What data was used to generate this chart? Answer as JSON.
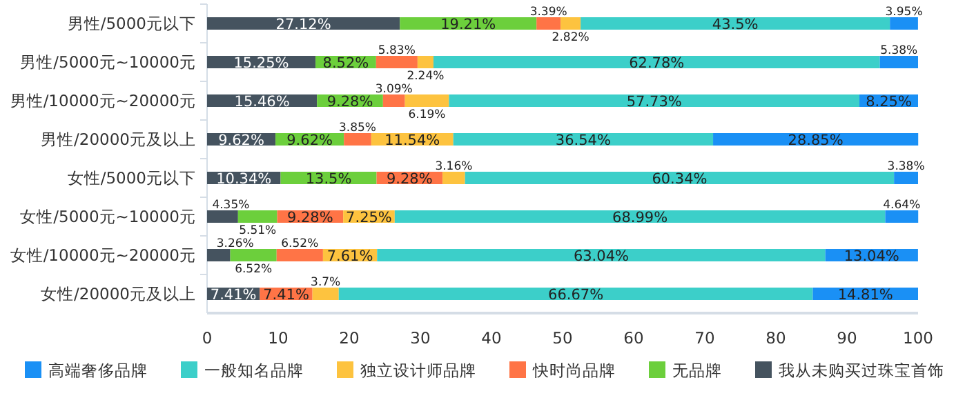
{
  "chart_data": {
    "type": "bar",
    "orientation": "horizontal",
    "stacked": true,
    "legend": "bottom",
    "xlim": [
      0,
      100
    ],
    "xticks": [
      0,
      10,
      20,
      30,
      40,
      50,
      60,
      70,
      80,
      90,
      100
    ],
    "categories": [
      "男性/5000元以下",
      "男性/5000元~10000元",
      "男性/10000元~20000元",
      "男性/20000元及以上",
      "女性/5000元以下",
      "女性/5000元~10000元",
      "女性/10000元~20000元",
      "女性/20000元及以上"
    ],
    "series": [
      {
        "name": "我从未购买过珠宝首饰",
        "color": "#45535f",
        "values": [
          27.12,
          15.25,
          15.46,
          9.62,
          10.34,
          4.35,
          3.26,
          7.41
        ],
        "value_labels": [
          "27.12%",
          "15.25%",
          "15.46%",
          "9.62%",
          "10.34%",
          "4.35%",
          "3.26%",
          "7.41%"
        ]
      },
      {
        "name": "无品牌",
        "color": "#6ccf3c",
        "values": [
          19.21,
          8.52,
          9.28,
          9.62,
          13.5,
          5.51,
          6.52,
          null
        ],
        "value_labels": [
          "19.21%",
          "8.52%",
          "9.28%",
          "9.62%",
          "13.5%",
          "5.51%",
          "6.52%",
          null
        ]
      },
      {
        "name": "快时尚品牌",
        "color": "#ff7446",
        "values": [
          3.39,
          5.83,
          3.09,
          3.85,
          9.28,
          9.28,
          6.52,
          7.41
        ],
        "value_labels": [
          "3.39%",
          "5.83%",
          "3.09%",
          "3.85%",
          "9.28%",
          "9.28%",
          "6.52%",
          "7.41%"
        ]
      },
      {
        "name": "独立设计师品牌",
        "color": "#fdc33f",
        "values": [
          2.82,
          2.24,
          6.19,
          11.54,
          3.16,
          7.25,
          7.61,
          3.7
        ],
        "value_labels": [
          "2.82%",
          "2.24%",
          "6.19%",
          "11.54%",
          "3.16%",
          "7.25%",
          "7.61%",
          "3.7%"
        ]
      },
      {
        "name": "一般知名品牌",
        "color": "#3ccfc9",
        "values": [
          43.5,
          62.78,
          57.73,
          36.54,
          60.34,
          68.99,
          63.04,
          66.67
        ],
        "value_labels": [
          "43.5%",
          "62.78%",
          "57.73%",
          "36.54%",
          "60.34%",
          "68.99%",
          "63.04%",
          "66.67%"
        ]
      },
      {
        "name": "高端奢侈品牌",
        "color": "#1a90f5",
        "values": [
          3.95,
          5.38,
          8.25,
          28.85,
          3.38,
          4.64,
          13.04,
          14.81
        ],
        "value_labels": [
          "3.95%",
          "5.38%",
          "8.25%",
          "28.85%",
          "3.38%",
          "4.64%",
          "13.04%",
          "14.81%"
        ]
      }
    ]
  }
}
